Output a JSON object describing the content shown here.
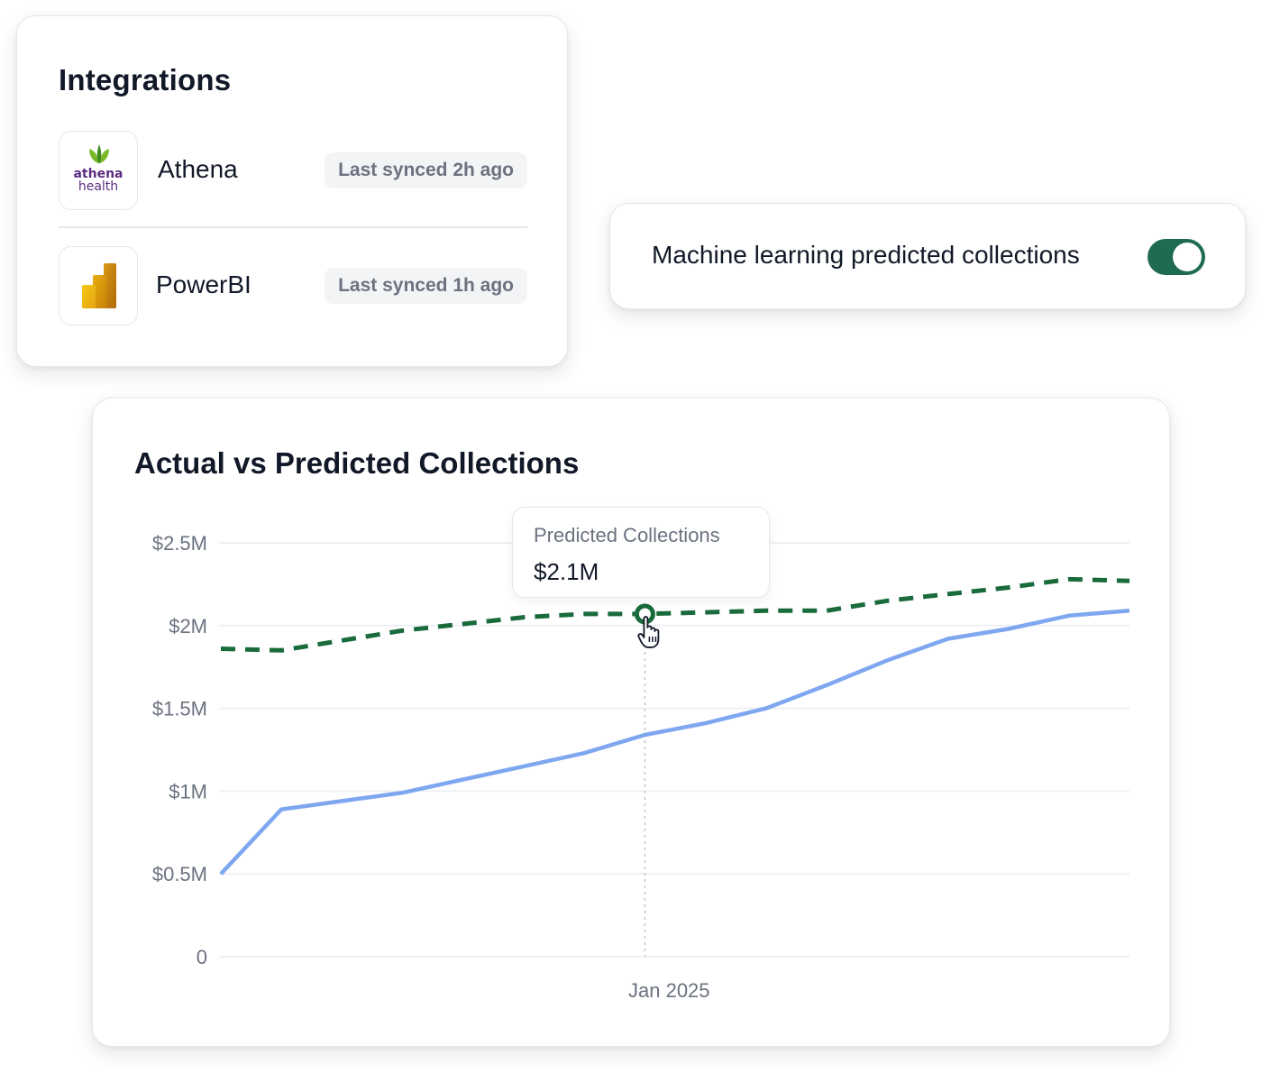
{
  "integrations": {
    "title": "Integrations",
    "items": [
      {
        "name": "Athena",
        "logo_line1": "athena",
        "logo_line2": "health",
        "sync": "Last synced 2h ago",
        "logo_icon": "athenahealth-logo"
      },
      {
        "name": "PowerBI",
        "sync": "Last synced 1h ago",
        "logo_icon": "powerbi-logo"
      }
    ]
  },
  "ml_toggle": {
    "label": "Machine learning predicted collections",
    "enabled": true,
    "on_color": "#1f6b4f"
  },
  "chart": {
    "title": "Actual vs Predicted Collections",
    "tooltip": {
      "label": "Predicted Collections",
      "value": "$2.1M"
    }
  },
  "chart_data": {
    "type": "line",
    "title": "Actual vs Predicted Collections",
    "y_ticks": [
      "0",
      "$0.5M",
      "$1M",
      "$1.5M",
      "$2M",
      "$2.5M"
    ],
    "y_tick_values": [
      0,
      0.5,
      1,
      1.5,
      2,
      2.5
    ],
    "ylim": [
      0,
      2.5
    ],
    "x_tick_labels": [
      {
        "label": "Jan 2025",
        "x": 7.4
      }
    ],
    "xlim": [
      0,
      15
    ],
    "grid": true,
    "series": [
      {
        "style": "dashed",
        "color": "#1a6b3c",
        "x": [
          0,
          1,
          2,
          3,
          4,
          5,
          6,
          7,
          8,
          9,
          10,
          11,
          12,
          13,
          14,
          15
        ],
        "values": [
          1.86,
          1.85,
          1.91,
          1.97,
          2.01,
          2.05,
          2.07,
          2.07,
          2.08,
          2.09,
          2.09,
          2.15,
          2.19,
          2.23,
          2.28,
          2.27
        ]
      },
      {
        "style": "solid",
        "color": "#7ea7f0",
        "x": [
          0,
          1,
          2,
          3,
          4,
          5,
          6,
          7,
          8,
          9,
          10,
          11,
          12,
          13,
          14,
          15
        ],
        "values": [
          0.5,
          0.89,
          0.94,
          0.99,
          1.07,
          1.15,
          1.23,
          1.34,
          1.41,
          1.5,
          1.64,
          1.79,
          1.92,
          1.98,
          2.06,
          2.09
        ]
      }
    ],
    "highlight": {
      "series": 0,
      "x": 7
    }
  }
}
